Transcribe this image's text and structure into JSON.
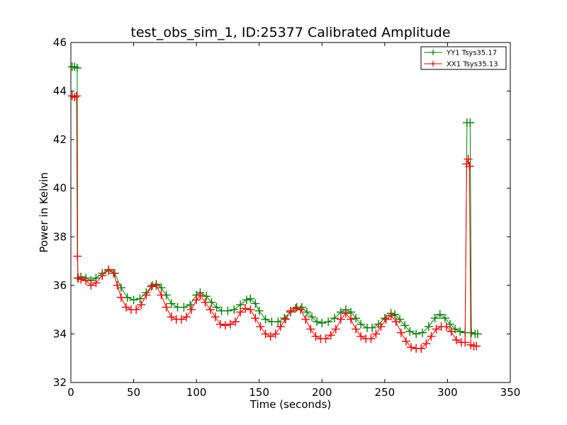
{
  "chart_data": {
    "type": "line",
    "title": "test_obs_sim_1, ID:25377 Calibrated Amplitude",
    "xlabel": "Time (seconds)",
    "ylabel": "Power in Kelvin",
    "xlim": [
      0,
      350
    ],
    "ylim": [
      32,
      46
    ],
    "xticks": [
      "0",
      "50",
      "100",
      "150",
      "200",
      "250",
      "300",
      "350"
    ],
    "yticks": [
      "32",
      "34",
      "36",
      "38",
      "40",
      "42",
      "44",
      "46"
    ],
    "grid": false,
    "legend_position": "top-right",
    "marker": "plus",
    "series": [
      {
        "name": "YY1 Tsys35.17",
        "color": "#008000",
        "points": [
          [
            1,
            45.0
          ],
          [
            3,
            45.0
          ],
          [
            5,
            44.95
          ],
          [
            5.5,
            36.3
          ],
          [
            8,
            36.35
          ],
          [
            12,
            36.3
          ],
          [
            16,
            36.2
          ],
          [
            20,
            36.3
          ],
          [
            25,
            36.5
          ],
          [
            30,
            36.6
          ],
          [
            35,
            36.5
          ],
          [
            40,
            35.9
          ],
          [
            45,
            35.5
          ],
          [
            50,
            35.4
          ],
          [
            55,
            35.45
          ],
          [
            60,
            35.7
          ],
          [
            65,
            36.0
          ],
          [
            68,
            36.05
          ],
          [
            72,
            35.9
          ],
          [
            76,
            35.6
          ],
          [
            80,
            35.25
          ],
          [
            85,
            35.1
          ],
          [
            90,
            35.1
          ],
          [
            95,
            35.2
          ],
          [
            100,
            35.6
          ],
          [
            103,
            35.7
          ],
          [
            108,
            35.55
          ],
          [
            112,
            35.3
          ],
          [
            116,
            35.1
          ],
          [
            120,
            34.95
          ],
          [
            125,
            34.95
          ],
          [
            130,
            35.0
          ],
          [
            135,
            35.2
          ],
          [
            140,
            35.4
          ],
          [
            143,
            35.45
          ],
          [
            147,
            35.25
          ],
          [
            150,
            34.95
          ],
          [
            155,
            34.6
          ],
          [
            160,
            34.5
          ],
          [
            165,
            34.5
          ],
          [
            170,
            34.65
          ],
          [
            175,
            34.9
          ],
          [
            180,
            35.1
          ],
          [
            184,
            35.1
          ],
          [
            188,
            34.9
          ],
          [
            192,
            34.7
          ],
          [
            196,
            34.5
          ],
          [
            200,
            34.45
          ],
          [
            205,
            34.5
          ],
          [
            210,
            34.65
          ],
          [
            215,
            34.9
          ],
          [
            219,
            35.0
          ],
          [
            223,
            34.9
          ],
          [
            227,
            34.65
          ],
          [
            231,
            34.4
          ],
          [
            236,
            34.25
          ],
          [
            240,
            34.25
          ],
          [
            245,
            34.4
          ],
          [
            250,
            34.65
          ],
          [
            255,
            34.85
          ],
          [
            258,
            34.8
          ],
          [
            262,
            34.6
          ],
          [
            266,
            34.35
          ],
          [
            270,
            34.1
          ],
          [
            275,
            34.0
          ],
          [
            280,
            34.05
          ],
          [
            285,
            34.3
          ],
          [
            290,
            34.65
          ],
          [
            294,
            34.8
          ],
          [
            298,
            34.65
          ],
          [
            302,
            34.4
          ],
          [
            306,
            34.2
          ],
          [
            310,
            34.1
          ],
          [
            314,
            34.05
          ],
          [
            315.5,
            42.7
          ],
          [
            318,
            42.7
          ],
          [
            319,
            34.05
          ],
          [
            322,
            34.0
          ],
          [
            324,
            34.0
          ]
        ]
      },
      {
        "name": "XX1 Tsys35.13",
        "color": "#ff0000",
        "points": [
          [
            1,
            43.8
          ],
          [
            3,
            43.75
          ],
          [
            4.5,
            43.8
          ],
          [
            5.2,
            37.2
          ],
          [
            5.8,
            36.3
          ],
          [
            8,
            36.25
          ],
          [
            12,
            36.2
          ],
          [
            16,
            36.0
          ],
          [
            20,
            36.1
          ],
          [
            25,
            36.4
          ],
          [
            30,
            36.65
          ],
          [
            34,
            36.5
          ],
          [
            37,
            36.0
          ],
          [
            40,
            35.5
          ],
          [
            44,
            35.1
          ],
          [
            48,
            35.0
          ],
          [
            52,
            35.0
          ],
          [
            56,
            35.2
          ],
          [
            60,
            35.6
          ],
          [
            64,
            35.95
          ],
          [
            68,
            36.0
          ],
          [
            72,
            35.6
          ],
          [
            76,
            35.1
          ],
          [
            80,
            34.7
          ],
          [
            84,
            34.6
          ],
          [
            88,
            34.6
          ],
          [
            92,
            34.7
          ],
          [
            96,
            35.0
          ],
          [
            100,
            35.4
          ],
          [
            103,
            35.6
          ],
          [
            107,
            35.3
          ],
          [
            111,
            35.0
          ],
          [
            115,
            34.7
          ],
          [
            119,
            34.4
          ],
          [
            123,
            34.35
          ],
          [
            127,
            34.4
          ],
          [
            131,
            34.5
          ],
          [
            135,
            34.9
          ],
          [
            139,
            35.05
          ],
          [
            143,
            35.0
          ],
          [
            147,
            34.65
          ],
          [
            151,
            34.3
          ],
          [
            155,
            34.0
          ],
          [
            159,
            33.9
          ],
          [
            163,
            34.0
          ],
          [
            167,
            34.3
          ],
          [
            171,
            34.6
          ],
          [
            175,
            34.95
          ],
          [
            179,
            35.05
          ],
          [
            183,
            35.0
          ],
          [
            187,
            34.6
          ],
          [
            191,
            34.2
          ],
          [
            195,
            33.9
          ],
          [
            199,
            33.8
          ],
          [
            203,
            33.8
          ],
          [
            207,
            33.95
          ],
          [
            211,
            34.2
          ],
          [
            215,
            34.6
          ],
          [
            219,
            34.85
          ],
          [
            223,
            34.6
          ],
          [
            227,
            34.2
          ],
          [
            231,
            33.9
          ],
          [
            235,
            33.8
          ],
          [
            239,
            33.8
          ],
          [
            243,
            34.0
          ],
          [
            247,
            34.3
          ],
          [
            251,
            34.6
          ],
          [
            255,
            34.75
          ],
          [
            259,
            34.5
          ],
          [
            263,
            34.05
          ],
          [
            267,
            33.7
          ],
          [
            271,
            33.45
          ],
          [
            275,
            33.4
          ],
          [
            279,
            33.4
          ],
          [
            283,
            33.6
          ],
          [
            287,
            33.9
          ],
          [
            291,
            34.2
          ],
          [
            295,
            34.3
          ],
          [
            299,
            34.3
          ],
          [
            303,
            34.1
          ],
          [
            307,
            33.75
          ],
          [
            311,
            33.65
          ],
          [
            314,
            33.65
          ],
          [
            315.2,
            41.0
          ],
          [
            316.5,
            41.2
          ],
          [
            317.5,
            40.9
          ],
          [
            318.5,
            33.55
          ],
          [
            321,
            33.5
          ],
          [
            323,
            33.5
          ]
        ]
      }
    ]
  }
}
